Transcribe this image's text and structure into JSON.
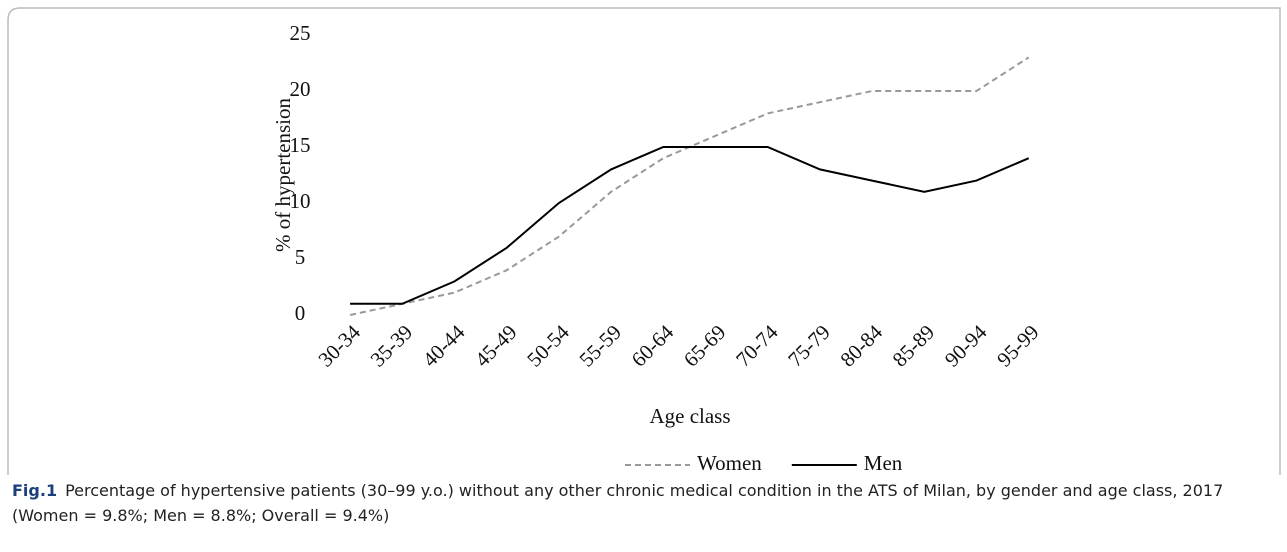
{
  "chart_data": {
    "type": "line",
    "y_label": "% of hypertension",
    "x_label": "Age class",
    "categories": [
      "30-34",
      "35-39",
      "40-44",
      "45-49",
      "50-54",
      "55-59",
      "60-64",
      "65-69",
      "70-74",
      "75-79",
      "80-84",
      "85-89",
      "90-94",
      "95-99"
    ],
    "series": [
      {
        "name": "Women",
        "color": "#999999",
        "dashed": true,
        "values": [
          0,
          1,
          2,
          4,
          7,
          11,
          14,
          16,
          18,
          19,
          20,
          20,
          20,
          23
        ]
      },
      {
        "name": "Men",
        "color": "#000000",
        "dashed": false,
        "values": [
          1,
          1,
          3,
          6,
          10,
          13,
          15,
          15,
          15,
          13,
          12,
          11,
          12,
          14
        ]
      }
    ],
    "ylim": [
      0,
      25
    ],
    "yticks": [
      0,
      5,
      10,
      15,
      20,
      25
    ],
    "grid": false,
    "legend": "bottom",
    "caption_label": "Fig.1",
    "caption": "Percentage of hypertensive patients (30–99 y.o.) without any other chronic medical condition in the ATS of Milan, by gender and age class, 2017 (Women = 9.8%; Men = 8.8%; Overall = 9.4%)"
  }
}
